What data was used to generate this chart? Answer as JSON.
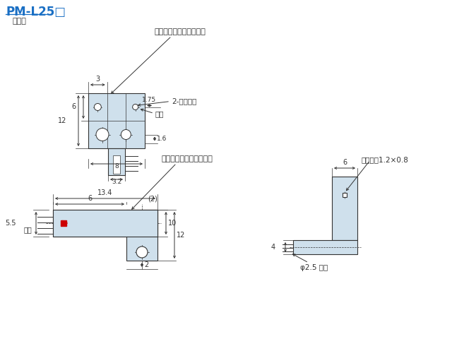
{
  "title": "PM-L25□",
  "subtitle": "传感器",
  "bg_color": "#ffffff",
  "light_blue": "#cfe0ec",
  "line_color": "#333333",
  "title_color": "#1a6fc4",
  "text_color": "#333333",
  "red_color": "#cc0000",
  "label_top": "工作状态指示灯（橙色）",
  "label_mount": "2-安装长孔",
  "label_axis": "光轴",
  "label_axis_width": "光轴宽度1.2×0.8",
  "label_cable": "φ2.5 电缆"
}
